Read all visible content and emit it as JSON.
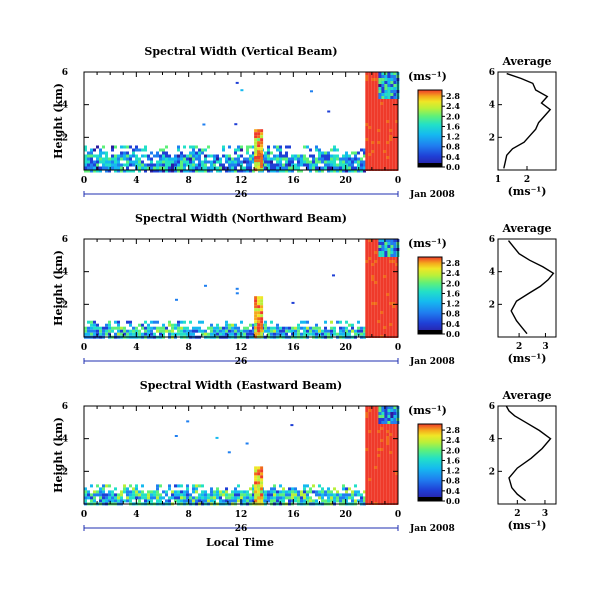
{
  "panels": [
    {
      "title": "Spectral Width (Vertical Beam)",
      "ylabel": "Height (km)",
      "y_ticks": [
        "2",
        "4",
        "6"
      ],
      "x_ticks": [
        "0",
        "4",
        "8",
        "12",
        "16",
        "20",
        "0"
      ],
      "day_label": "26",
      "date_label": "Jan 2008",
      "unit": "(ms⁻¹)",
      "colorbar_ticks": [
        "0.0",
        "0.4",
        "0.8",
        "1.2",
        "1.6",
        "2.0",
        "2.4",
        "2.8"
      ],
      "avg_title": "Average",
      "avg_x_ticks": [
        "1",
        "2"
      ],
      "avg_y_ticks": [
        "2",
        "4",
        "6"
      ],
      "avg_xlabel": "(ms⁻¹)"
    },
    {
      "title": "Spectral Width (Northward Beam)",
      "ylabel": "Height (km)",
      "y_ticks": [
        "2",
        "4",
        "6"
      ],
      "x_ticks": [
        "0",
        "4",
        "8",
        "12",
        "16",
        "20",
        "0"
      ],
      "day_label": "26",
      "date_label": "Jan 2008",
      "unit": "(ms⁻¹)",
      "colorbar_ticks": [
        "0.0",
        "0.4",
        "0.8",
        "1.2",
        "1.6",
        "2.0",
        "2.4",
        "2.8"
      ],
      "avg_title": "Average",
      "avg_x_ticks": [
        "2",
        "3"
      ],
      "avg_y_ticks": [
        "2",
        "4",
        "6"
      ],
      "avg_xlabel": "(ms⁻¹)"
    },
    {
      "title": "Spectral Width (Eastward Beam)",
      "ylabel": "Height (km)",
      "y_ticks": [
        "2",
        "4",
        "6"
      ],
      "x_ticks": [
        "0",
        "4",
        "8",
        "12",
        "16",
        "20",
        "0"
      ],
      "day_label": "26",
      "date_label": "Jan 2008",
      "unit": "(ms⁻¹)",
      "colorbar_ticks": [
        "0.0",
        "0.4",
        "0.8",
        "1.2",
        "1.6",
        "2.0",
        "2.4",
        "2.8"
      ],
      "avg_title": "Average",
      "avg_x_ticks": [
        "2",
        "3"
      ],
      "avg_y_ticks": [
        "2",
        "4",
        "6"
      ],
      "avg_xlabel": "(ms⁻¹)"
    }
  ],
  "xlabel": "Local Time",
  "colormap": [
    "#000000",
    "#2b1b9e",
    "#1f3fd6",
    "#1f7ff0",
    "#15b9f0",
    "#22e0c8",
    "#5ef07a",
    "#b9f03a",
    "#f0e626",
    "#f5a81c",
    "#f06a18",
    "#ef3a2a"
  ],
  "chart_data": [
    {
      "type": "heatmap",
      "title": "Spectral Width (Vertical Beam)",
      "xlabel": "Local Time",
      "ylabel": "Height (km)",
      "xlim": [
        0,
        24
      ],
      "ylim": [
        0,
        6
      ],
      "clim": [
        0,
        2.8
      ],
      "colorbar_label": "(ms⁻¹)",
      "regions": [
        {
          "x": [
            0,
            21.5
          ],
          "y": [
            0,
            1.5
          ],
          "value": 0.8
        },
        {
          "x": [
            13,
            13.5
          ],
          "y": [
            0,
            2.5
          ],
          "value": 2.2
        },
        {
          "x": [
            21.5,
            24
          ],
          "y": [
            0,
            6
          ],
          "value": 2.8
        },
        {
          "x": [
            22.5,
            24
          ],
          "y": [
            4.5,
            6
          ],
          "value": 0.8
        }
      ]
    },
    {
      "type": "line",
      "title": "Average",
      "xlabel": "(ms⁻¹)",
      "xlim": [
        1,
        3
      ],
      "ylim": [
        0,
        6
      ],
      "x": [
        1.2,
        1.25,
        1.3,
        1.5,
        1.9,
        2.1,
        2.3,
        2.4,
        2.6,
        2.8,
        2.5,
        2.7,
        2.3,
        2.2,
        1.8,
        1.3
      ],
      "y": [
        0.1,
        0.5,
        0.9,
        1.3,
        1.7,
        2.1,
        2.5,
        2.9,
        3.3,
        3.7,
        4.1,
        4.5,
        4.9,
        5.3,
        5.6,
        5.9
      ]
    },
    {
      "type": "heatmap",
      "title": "Spectral Width (Northward Beam)",
      "xlabel": "Local Time",
      "ylabel": "Height (km)",
      "xlim": [
        0,
        24
      ],
      "ylim": [
        0,
        6
      ],
      "clim": [
        0,
        2.8
      ],
      "colorbar_label": "(ms⁻¹)",
      "regions": [
        {
          "x": [
            0,
            21.5
          ],
          "y": [
            0,
            1.0
          ],
          "value": 0.9
        },
        {
          "x": [
            13,
            13.5
          ],
          "y": [
            0,
            2.5
          ],
          "value": 2.2
        },
        {
          "x": [
            21.5,
            24
          ],
          "y": [
            0,
            6
          ],
          "value": 2.8
        },
        {
          "x": [
            22.5,
            24
          ],
          "y": [
            5,
            6
          ],
          "value": 0.8
        }
      ]
    },
    {
      "type": "line",
      "title": "Average",
      "xlabel": "(ms⁻¹)",
      "xlim": [
        1.2,
        3.4
      ],
      "ylim": [
        0,
        6
      ],
      "x": [
        2.3,
        2.1,
        1.9,
        1.7,
        1.9,
        2.4,
        2.8,
        3.1,
        3.3,
        2.9,
        2.4,
        2.0,
        1.8,
        1.6
      ],
      "y": [
        0.2,
        0.6,
        1.0,
        1.6,
        2.2,
        2.7,
        3.1,
        3.5,
        3.9,
        4.3,
        4.7,
        5.1,
        5.5,
        5.9
      ]
    },
    {
      "type": "heatmap",
      "title": "Spectral Width (Eastward Beam)",
      "xlabel": "Local Time",
      "ylabel": "Height (km)",
      "xlim": [
        0,
        24
      ],
      "ylim": [
        0,
        6
      ],
      "clim": [
        0,
        2.8
      ],
      "colorbar_label": "(ms⁻¹)",
      "regions": [
        {
          "x": [
            0,
            21.5
          ],
          "y": [
            0,
            1.2
          ],
          "value": 1.0
        },
        {
          "x": [
            13,
            13.5
          ],
          "y": [
            0,
            2.3
          ],
          "value": 2.2
        },
        {
          "x": [
            21.5,
            24
          ],
          "y": [
            0,
            6
          ],
          "value": 2.8
        },
        {
          "x": [
            22.5,
            24
          ],
          "y": [
            5,
            6
          ],
          "value": 0.8
        }
      ]
    },
    {
      "type": "line",
      "title": "Average",
      "xlabel": "(ms⁻¹)",
      "xlim": [
        1.3,
        3.4
      ],
      "ylim": [
        0,
        6
      ],
      "x": [
        2.3,
        2.0,
        1.8,
        1.7,
        2.0,
        2.5,
        2.9,
        3.2,
        2.8,
        2.3,
        1.9,
        1.7,
        1.6
      ],
      "y": [
        0.2,
        0.6,
        1.0,
        1.6,
        2.2,
        2.8,
        3.4,
        4.0,
        4.5,
        5.0,
        5.4,
        5.7,
        6.0
      ]
    }
  ]
}
